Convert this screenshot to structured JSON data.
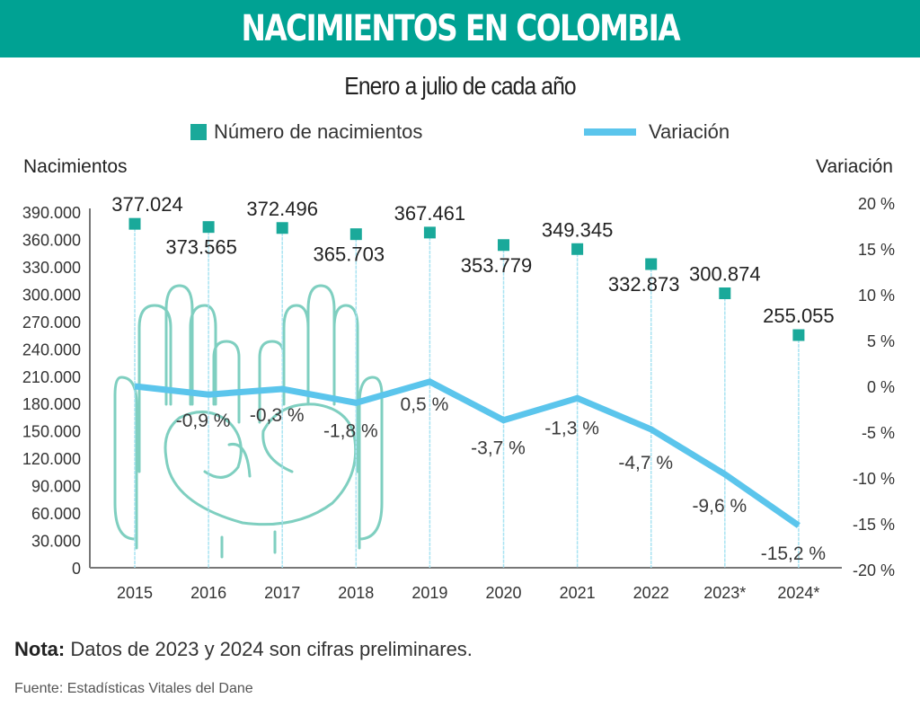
{
  "header": {
    "title": "NACIMIENTOS EN COLOMBIA",
    "subtitle": "Enero a julio de cada año"
  },
  "legend": {
    "bars_label": "Número de nacimientos",
    "line_label": "Variación"
  },
  "colors": {
    "banner": "#00a293",
    "marker": "#1aa99a",
    "line": "#5bc5ec",
    "stem": "#a8e3f2",
    "illustration": "#7fcfc0"
  },
  "footer": {
    "note_label": "Nota:",
    "note_text": "Datos de 2023 y 2024 son cifras preliminares.",
    "source": "Fuente: Estadísticas Vitales del Dane"
  },
  "chart_data": {
    "type": "line",
    "title": "NACIMIENTOS EN COLOMBIA",
    "subtitle": "Enero a julio de cada año",
    "categories": [
      "2015",
      "2016",
      "2017",
      "2018",
      "2019",
      "2020",
      "2021",
      "2022",
      "2023*",
      "2024*"
    ],
    "series": [
      {
        "name": "Número de nacimientos",
        "axis": "left",
        "marker": "square",
        "values": [
          377024,
          373565,
          372496,
          365703,
          367461,
          353779,
          349345,
          332873,
          300874,
          255055
        ],
        "labels": [
          "377.024",
          "373.565",
          "372.496",
          "365.703",
          "367.461",
          "353.779",
          "349.345",
          "332.873",
          "300.874",
          "255.055"
        ]
      },
      {
        "name": "Variación",
        "axis": "right",
        "values": [
          0,
          -0.9,
          -0.3,
          -1.8,
          0.5,
          -3.7,
          -1.3,
          -4.7,
          -9.6,
          -15.2
        ],
        "labels": [
          "",
          "-0,9 %",
          "-0,3 %",
          "-1,8 %",
          "0,5 %",
          "-3,7 %",
          "-1,3 %",
          "-4,7 %",
          "-9,6 %",
          "-15,2 %"
        ]
      }
    ],
    "ylabel_left": "Nacimientos",
    "ylabel_right": "Variación",
    "ylim_left": [
      0,
      390000
    ],
    "yticks_left": [
      "0",
      "30.000",
      "60.000",
      "90.000",
      "120.000",
      "150.000",
      "180.000",
      "210.000",
      "240.000",
      "270.000",
      "300.000",
      "330.000",
      "360.000",
      "390.000"
    ],
    "ylim_right": [
      -20,
      20
    ],
    "yticks_right": [
      "-20 %",
      "-15 %",
      "-10 %",
      "-5 %",
      "0 %",
      "5 %",
      "10 %",
      "15 %",
      "20 %"
    ],
    "legend_position": "top-center",
    "grid": false
  }
}
